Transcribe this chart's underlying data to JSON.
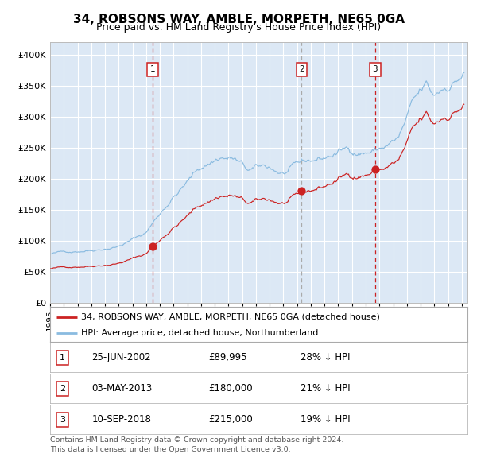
{
  "title": "34, ROBSONS WAY, AMBLE, MORPETH, NE65 0GA",
  "subtitle": "Price paid vs. HM Land Registry's House Price Index (HPI)",
  "legend_property": "34, ROBSONS WAY, AMBLE, MORPETH, NE65 0GA (detached house)",
  "legend_hpi": "HPI: Average price, detached house, Northumberland",
  "sales": [
    {
      "date": "2002-06-25",
      "price": 89995,
      "label": "1"
    },
    {
      "date": "2013-05-03",
      "price": 180000,
      "label": "2"
    },
    {
      "date": "2018-09-10",
      "price": 215000,
      "label": "3"
    }
  ],
  "table_rows": [
    [
      "1",
      "25-JUN-2002",
      "£89,995",
      "28% ↓ HPI"
    ],
    [
      "2",
      "03-MAY-2013",
      "£180,000",
      "21% ↓ HPI"
    ],
    [
      "3",
      "10-SEP-2018",
      "£215,000",
      "19% ↓ HPI"
    ]
  ],
  "footer": "Contains HM Land Registry data © Crown copyright and database right 2024.\nThis data is licensed under the Open Government Licence v3.0.",
  "ylim": [
    0,
    420000
  ],
  "yticks": [
    0,
    50000,
    100000,
    150000,
    200000,
    250000,
    300000,
    350000,
    400000
  ],
  "ytick_labels": [
    "£0",
    "£50K",
    "£100K",
    "£150K",
    "£200K",
    "£250K",
    "£300K",
    "£350K",
    "£400K"
  ],
  "line_color_hpi": "#8ABBE0",
  "line_color_property": "#CC2222",
  "marker_color": "#CC2222",
  "vline_color_sale": "#CC2222",
  "vline_color_2": "#AAAAAA",
  "bg_color": "#DCE8F5",
  "grid_color": "#FFFFFF",
  "title_fontsize": 11,
  "subtitle_fontsize": 9
}
